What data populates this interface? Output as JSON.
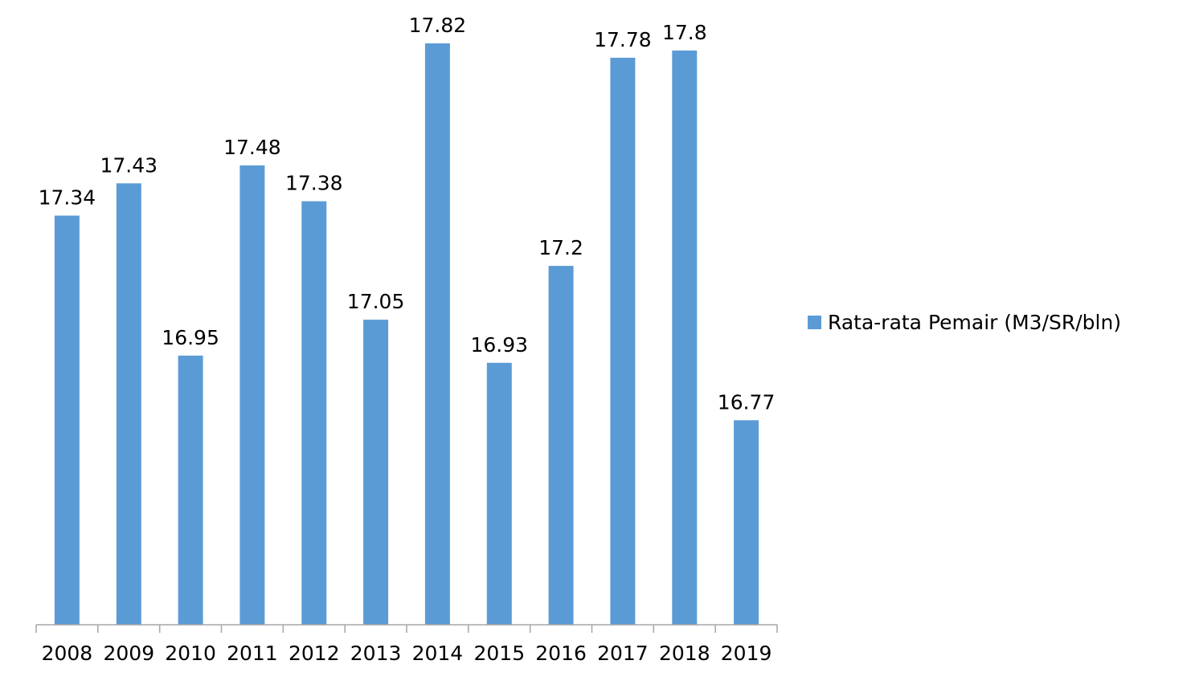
{
  "chart_data": {
    "type": "bar",
    "categories": [
      "2008",
      "2009",
      "2010",
      "2011",
      "2012",
      "2013",
      "2014",
      "2015",
      "2016",
      "2017",
      "2018",
      "2019"
    ],
    "series": [
      {
        "name": "Rata-rata Pemair (M3/SR/bln)",
        "values": [
          17.34,
          17.43,
          16.95,
          17.48,
          17.38,
          17.05,
          17.82,
          16.93,
          17.2,
          17.78,
          17.8,
          16.77
        ],
        "labels": [
          "17.34",
          "17.43",
          "16.95",
          "17.48",
          "17.38",
          "17.05",
          "17.82",
          "16.93",
          "17.2",
          "17.78",
          "17.8",
          "16.77"
        ],
        "color": "#5b9bd5"
      }
    ],
    "title": "",
    "xlabel": "",
    "ylabel": "",
    "ylim": [
      16.2,
      17.85
    ],
    "grid": false,
    "legend": "right",
    "axis_color": "#a6a6a6"
  }
}
